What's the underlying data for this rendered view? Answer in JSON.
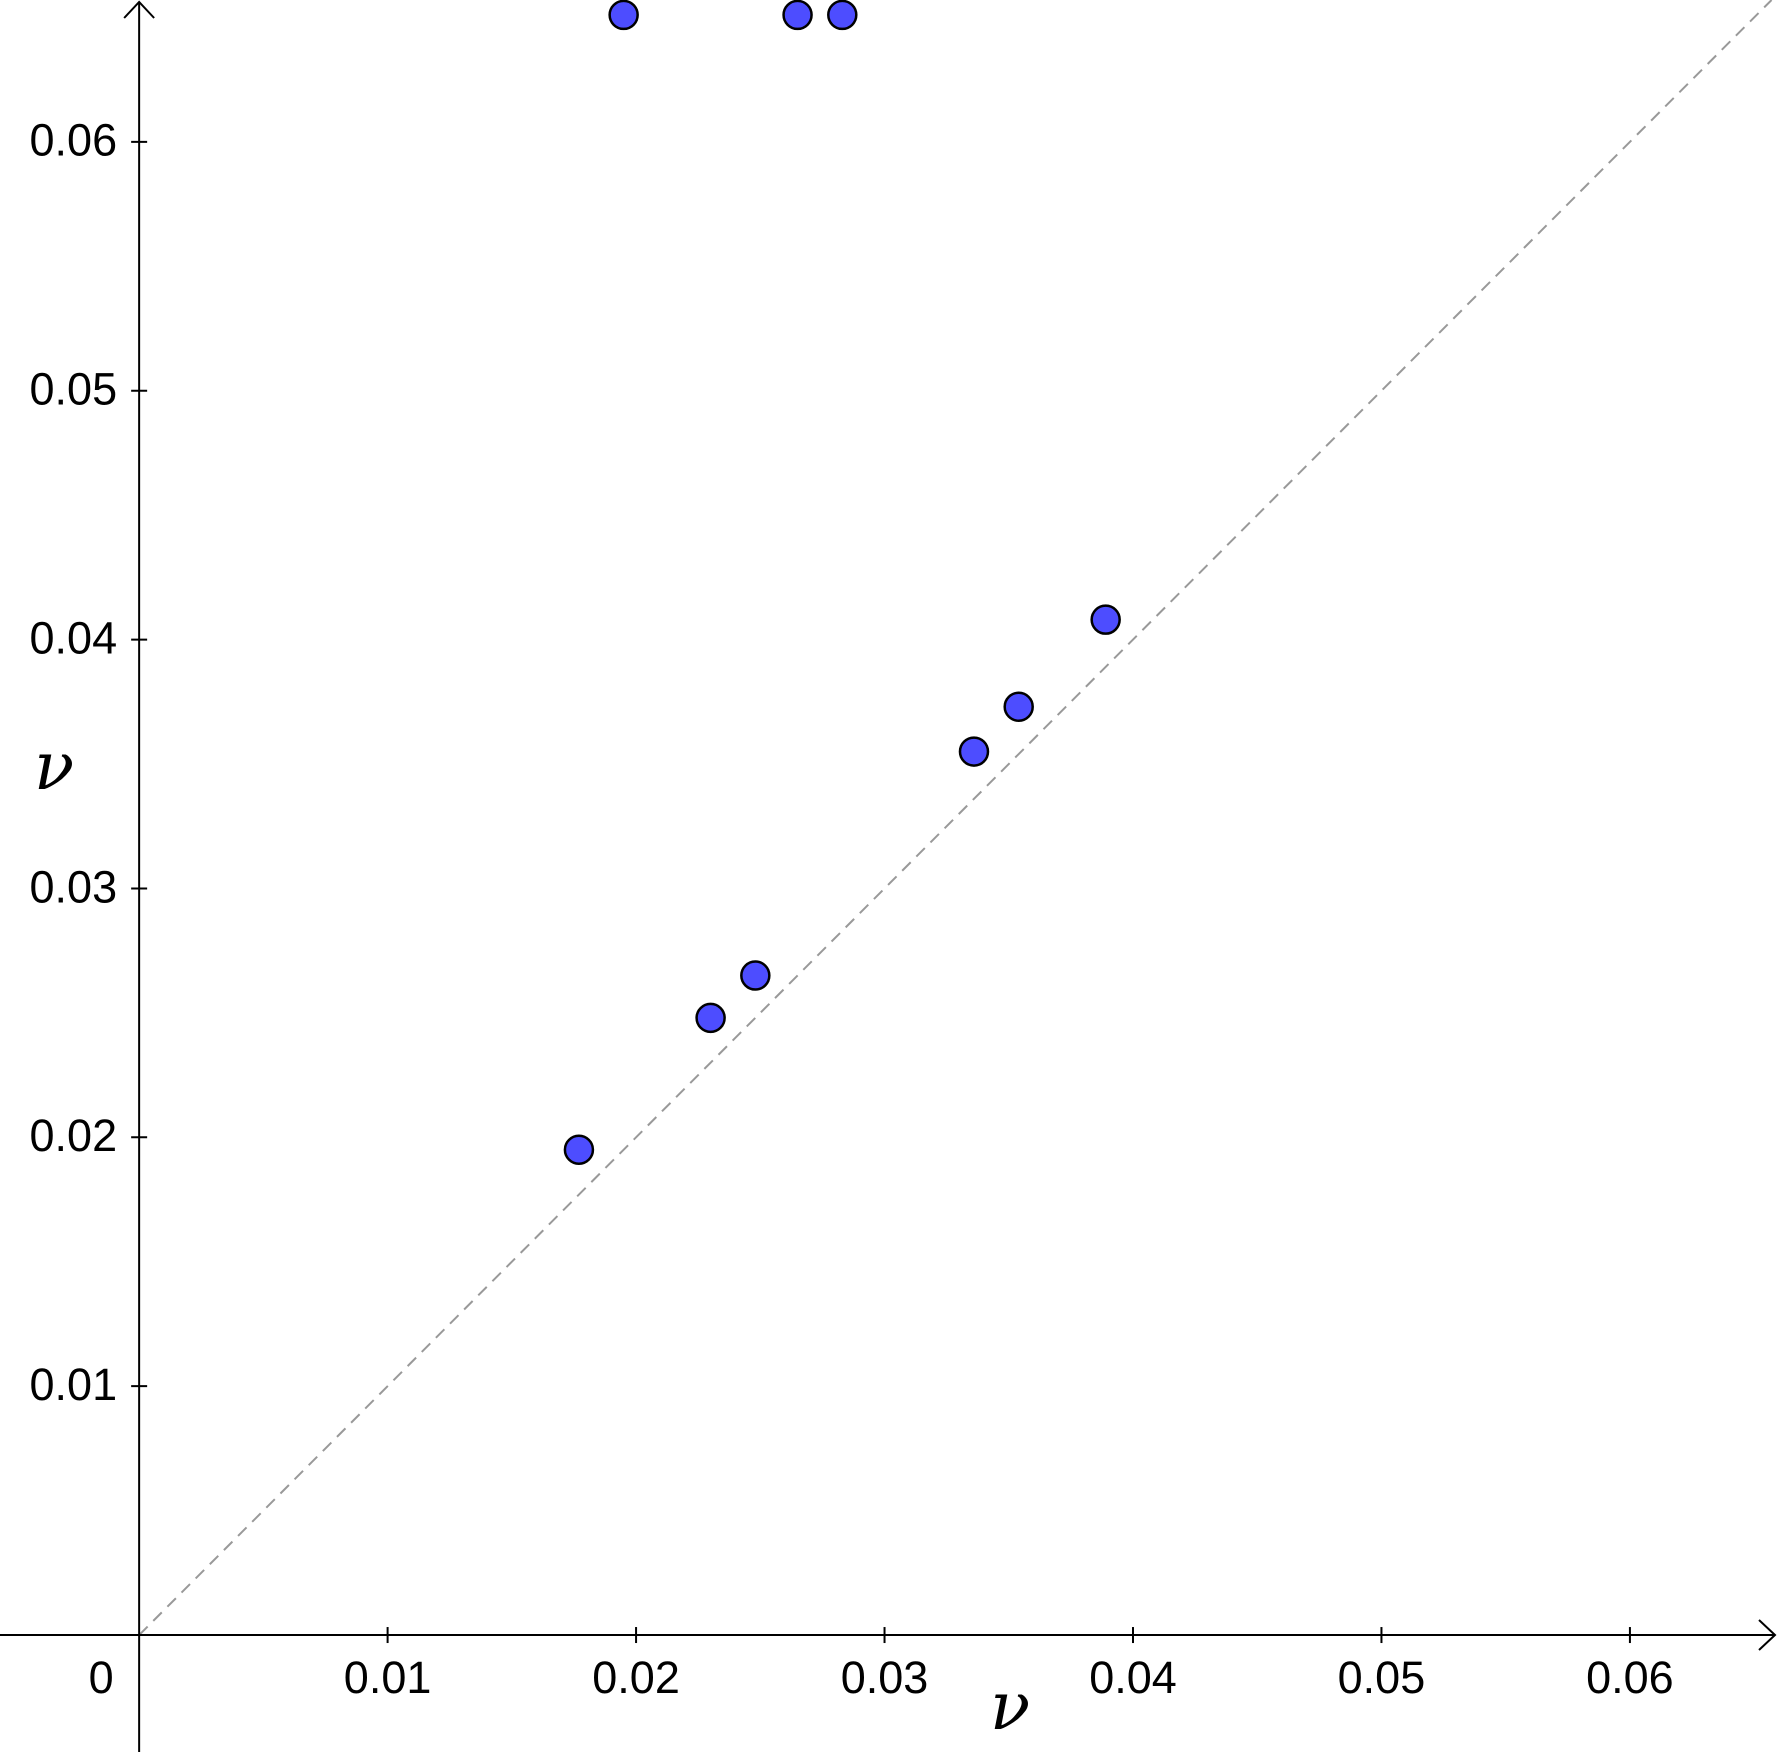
{
  "chart_data": {
    "type": "scatter",
    "x_label": "ν",
    "y_label": "ν",
    "x": [
      0.0177,
      0.023,
      0.0248,
      0.0336,
      0.0354,
      0.0389,
      0.0195,
      0.0265,
      0.0283
    ],
    "values": [
      0.0195,
      0.0248,
      0.0265,
      0.0355,
      0.0373,
      0.0408,
      0.0651,
      0.0651,
      0.0651
    ],
    "color": "#4d4dff",
    "xlim": [
      -0.0056,
      0.066
    ],
    "ylim": [
      -0.0047,
      0.0657
    ],
    "xticks": [
      0,
      0.01,
      0.02,
      0.03,
      0.04,
      0.05,
      0.06
    ],
    "yticks": [
      0.01,
      0.02,
      0.03,
      0.04,
      0.05,
      0.06
    ],
    "diagonal": true,
    "grid": false
  }
}
